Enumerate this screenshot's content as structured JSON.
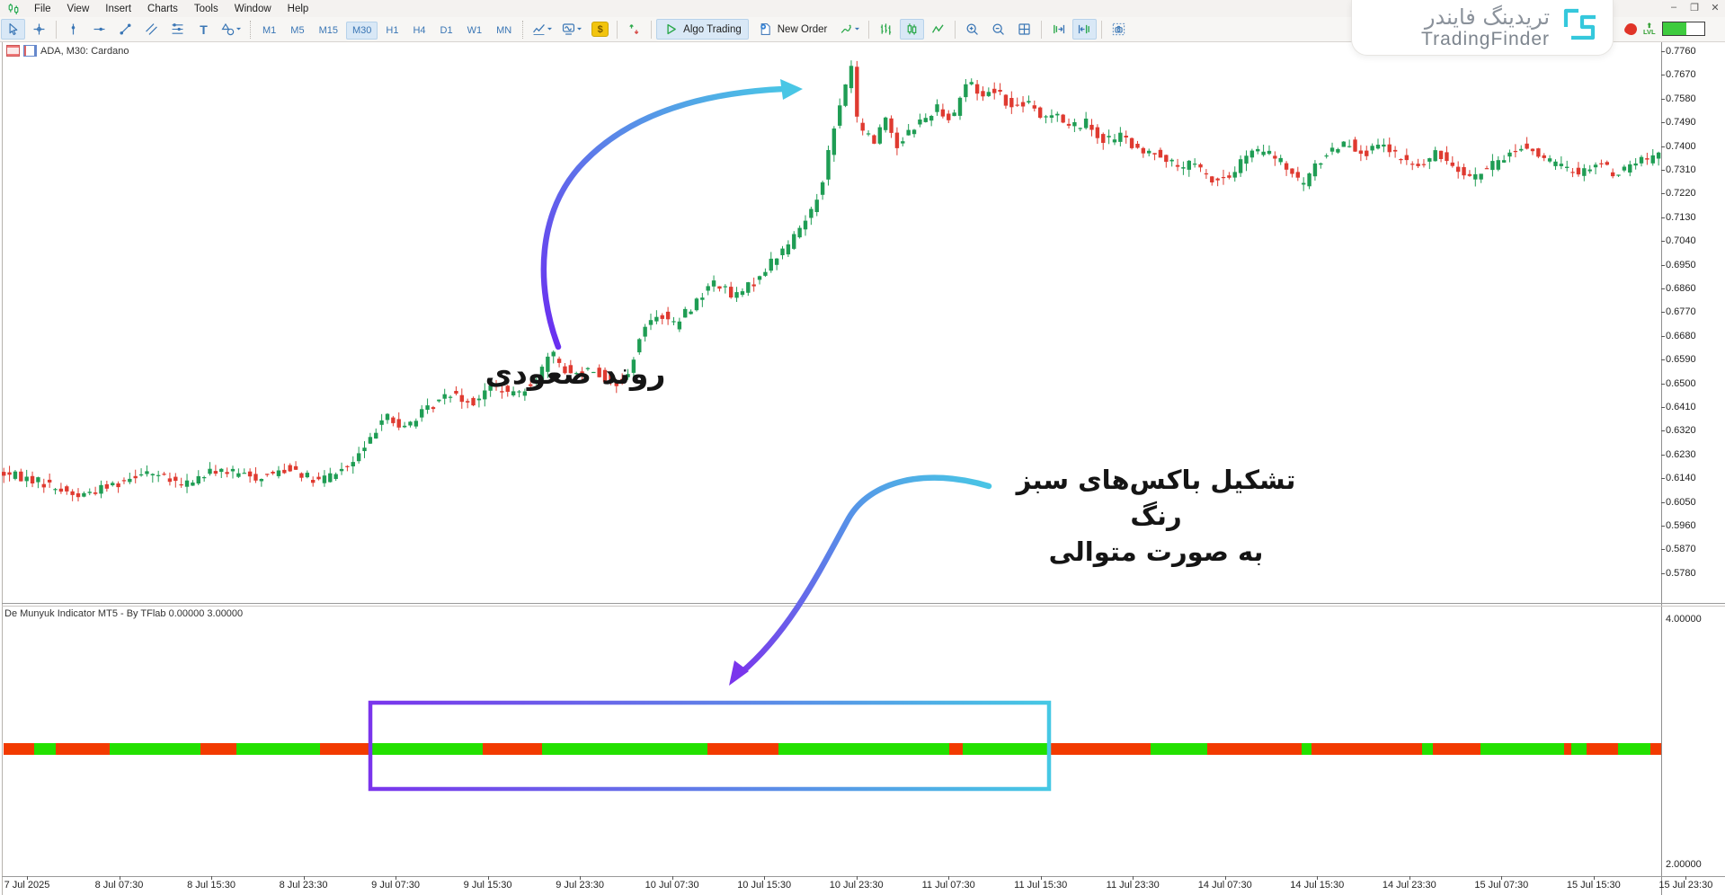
{
  "window": {
    "menus": [
      "File",
      "View",
      "Insert",
      "Charts",
      "Tools",
      "Window",
      "Help"
    ],
    "controls": [
      {
        "name": "minimize",
        "glyph": "–"
      },
      {
        "name": "restore",
        "glyph": "❐"
      },
      {
        "name": "close",
        "glyph": "✕"
      }
    ]
  },
  "toolbar": {
    "timeframes": [
      {
        "label": "M1",
        "active": false
      },
      {
        "label": "M5",
        "active": false
      },
      {
        "label": "M15",
        "active": false
      },
      {
        "label": "M30",
        "active": true
      },
      {
        "label": "H1",
        "active": false
      },
      {
        "label": "H4",
        "active": false
      },
      {
        "label": "D1",
        "active": false
      },
      {
        "label": "W1",
        "active": false
      },
      {
        "label": "MN",
        "active": false
      }
    ],
    "algo_trading_label": "Algo Trading",
    "new_order_label": "New Order",
    "dollar_glyph": "$",
    "icons": [
      "cursor",
      "crosshair",
      "vertical-line",
      "horizontal-line",
      "trendline",
      "channel",
      "fibonacci",
      "text",
      "shapes",
      "chart-type",
      "indicator-window",
      "market-watch",
      "deposit-withdraw",
      "play",
      "new-order",
      "quick-chart",
      "bars",
      "candles",
      "line-chart",
      "zoom-in",
      "zoom-out",
      "tile-windows",
      "shift-end-right",
      "shift-end-left",
      "screenshot"
    ]
  },
  "chart": {
    "symbol_label": "ADA, M30:  Cardano",
    "price_axis": [
      "0.7760",
      "0.7670",
      "0.7580",
      "0.7490",
      "0.7400",
      "0.7310",
      "0.7220",
      "0.7130",
      "0.7040",
      "0.6950",
      "0.6860",
      "0.6770",
      "0.6680",
      "0.6590",
      "0.6500",
      "0.6410",
      "0.6320",
      "0.6230",
      "0.6140",
      "0.6050",
      "0.5960",
      "0.5870",
      "0.5780"
    ],
    "time_axis": [
      "7 Jul 2025",
      "8 Jul 07:30",
      "8 Jul 15:30",
      "8 Jul 23:30",
      "9 Jul 07:30",
      "9 Jul 15:30",
      "9 Jul 23:30",
      "10 Jul 07:30",
      "10 Jul 15:30",
      "10 Jul 23:30",
      "11 Jul 07:30",
      "11 Jul 15:30",
      "11 Jul 23:30",
      "14 Jul 07:30",
      "14 Jul 15:30",
      "14 Jul 23:30",
      "15 Jul 07:30",
      "15 Jul 15:30",
      "15 Jul 23:30"
    ]
  },
  "indicator": {
    "label": "De Munyuk Indicator MT5 - By TFlab 0.00000 3.00000",
    "axis_top": "4.00000",
    "axis_bottom": "2.00000",
    "segments": [
      [
        4,
        38,
        "r"
      ],
      [
        38,
        62,
        "g"
      ],
      [
        62,
        122,
        "r"
      ],
      [
        122,
        223,
        "g"
      ],
      [
        223,
        263,
        "r"
      ],
      [
        263,
        356,
        "g"
      ],
      [
        356,
        412,
        "r"
      ],
      [
        412,
        537,
        "g"
      ],
      [
        537,
        603,
        "r"
      ],
      [
        603,
        787,
        "g"
      ],
      [
        787,
        866,
        "r"
      ],
      [
        866,
        1056,
        "g"
      ],
      [
        1056,
        1071,
        "r"
      ],
      [
        1071,
        1167,
        "g"
      ],
      [
        1167,
        1280,
        "r"
      ],
      [
        1280,
        1343,
        "g"
      ],
      [
        1343,
        1448,
        "r"
      ],
      [
        1448,
        1459,
        "g"
      ],
      [
        1459,
        1582,
        "r"
      ],
      [
        1582,
        1594,
        "g"
      ],
      [
        1594,
        1647,
        "r"
      ],
      [
        1647,
        1740,
        "g"
      ],
      [
        1740,
        1748,
        "r"
      ],
      [
        1748,
        1765,
        "g"
      ],
      [
        1765,
        1800,
        "r"
      ],
      [
        1800,
        1836,
        "g"
      ],
      [
        1836,
        1848,
        "r"
      ]
    ]
  },
  "annotations": {
    "uptrend": "روند صعودی",
    "boxes_line1": "تشکیل باکس‌های سبز رنگ",
    "boxes_line2": "به صورت متوالی"
  },
  "brand": {
    "name_fa": "تریدینگ فایندر",
    "name_en": "TradingFinder",
    "lvl_label": "LVL"
  },
  "colors": {
    "candle_up": "#1f9d54",
    "candle_down": "#df3a30",
    "indicator_green": "#23e000",
    "indicator_red": "#f23a00",
    "box_purple": "#7a35ec",
    "box_cyan": "#46c8e4",
    "toolbar_blue": "#3a76b5",
    "toolbar_green": "#2aa84a",
    "selected_bg": "#d9e8f6",
    "brand_cyan": "#35c8dc"
  },
  "chart_data": {
    "type": "candlestick",
    "title": "ADA, M30: Cardano",
    "price_range": [
      0.578,
      0.776
    ],
    "price_top_y": 57,
    "price_bottom_y": 637,
    "bar_spacing_px": 6.37,
    "waypoints": [
      [
        0,
        0.616
      ],
      [
        45,
        0.613
      ],
      [
        90,
        0.607
      ],
      [
        135,
        0.612
      ],
      [
        165,
        0.617
      ],
      [
        205,
        0.611
      ],
      [
        245,
        0.617
      ],
      [
        290,
        0.614
      ],
      [
        330,
        0.618
      ],
      [
        355,
        0.612
      ],
      [
        395,
        0.619
      ],
      [
        418,
        0.629
      ],
      [
        432,
        0.64
      ],
      [
        448,
        0.632
      ],
      [
        472,
        0.638
      ],
      [
        508,
        0.647
      ],
      [
        528,
        0.642
      ],
      [
        552,
        0.649
      ],
      [
        575,
        0.645
      ],
      [
        598,
        0.651
      ],
      [
        618,
        0.661
      ],
      [
        638,
        0.653
      ],
      [
        663,
        0.656
      ],
      [
        685,
        0.649
      ],
      [
        702,
        0.652
      ],
      [
        716,
        0.668
      ],
      [
        736,
        0.677
      ],
      [
        754,
        0.672
      ],
      [
        776,
        0.68
      ],
      [
        800,
        0.689
      ],
      [
        820,
        0.682
      ],
      [
        842,
        0.688
      ],
      [
        862,
        0.696
      ],
      [
        882,
        0.703
      ],
      [
        902,
        0.713
      ],
      [
        916,
        0.723
      ],
      [
        930,
        0.744
      ],
      [
        944,
        0.762
      ],
      [
        950,
        0.7745
      ],
      [
        958,
        0.748
      ],
      [
        968,
        0.745
      ],
      [
        976,
        0.741
      ],
      [
        988,
        0.752
      ],
      [
        1002,
        0.74
      ],
      [
        1018,
        0.747
      ],
      [
        1032,
        0.75
      ],
      [
        1046,
        0.755
      ],
      [
        1062,
        0.75
      ],
      [
        1080,
        0.765
      ],
      [
        1096,
        0.759
      ],
      [
        1112,
        0.762
      ],
      [
        1130,
        0.754
      ],
      [
        1146,
        0.757
      ],
      [
        1162,
        0.75
      ],
      [
        1178,
        0.754
      ],
      [
        1192,
        0.747
      ],
      [
        1212,
        0.749
      ],
      [
        1232,
        0.742
      ],
      [
        1252,
        0.744
      ],
      [
        1272,
        0.737
      ],
      [
        1292,
        0.738
      ],
      [
        1312,
        0.732
      ],
      [
        1332,
        0.733
      ],
      [
        1352,
        0.727
      ],
      [
        1372,
        0.728
      ],
      [
        1392,
        0.737
      ],
      [
        1412,
        0.738
      ],
      [
        1432,
        0.733
      ],
      [
        1452,
        0.725
      ],
      [
        1467,
        0.732
      ],
      [
        1482,
        0.738
      ],
      [
        1502,
        0.742
      ],
      [
        1522,
        0.737
      ],
      [
        1542,
        0.74
      ],
      [
        1562,
        0.735
      ],
      [
        1582,
        0.732
      ],
      [
        1602,
        0.737
      ],
      [
        1622,
        0.733
      ],
      [
        1642,
        0.728
      ],
      [
        1662,
        0.732
      ],
      [
        1682,
        0.737
      ],
      [
        1702,
        0.74
      ],
      [
        1722,
        0.735
      ],
      [
        1742,
        0.732
      ],
      [
        1762,
        0.73
      ],
      [
        1782,
        0.734
      ],
      [
        1802,
        0.729
      ],
      [
        1822,
        0.734
      ],
      [
        1848,
        0.736
      ]
    ]
  }
}
